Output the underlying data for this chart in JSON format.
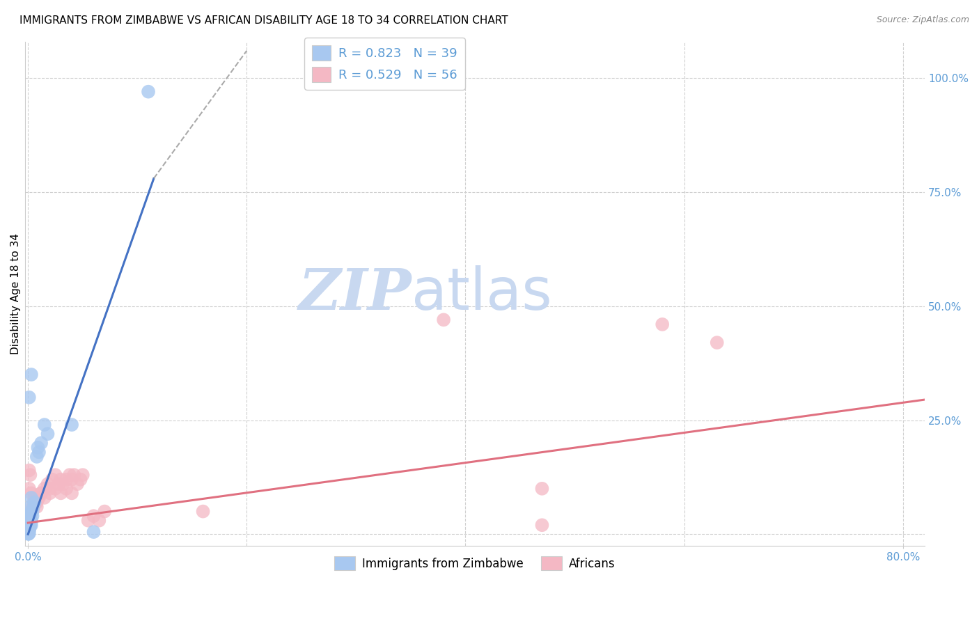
{
  "title": "IMMIGRANTS FROM ZIMBABWE VS AFRICAN DISABILITY AGE 18 TO 34 CORRELATION CHART",
  "source": "Source: ZipAtlas.com",
  "ylabel": "Disability Age 18 to 34",
  "ytick_values": [
    0.0,
    0.25,
    0.5,
    0.75,
    1.0
  ],
  "ytick_labels": [
    "",
    "25.0%",
    "50.0%",
    "75.0%",
    "100.0%"
  ],
  "xlim": [
    -0.003,
    0.82
  ],
  "ylim": [
    -0.025,
    1.08
  ],
  "watermark_zip": "ZIP",
  "watermark_atlas": "atlas",
  "legend_r_entries": [
    {
      "label": "R = 0.823   N = 39",
      "color": "#a8c8f0"
    },
    {
      "label": "R = 0.529   N = 56",
      "color": "#f4b8c4"
    }
  ],
  "legend_bottom_labels": [
    "Immigrants from Zimbabwe",
    "Africans"
  ],
  "legend_bottom_colors": [
    "#a8c8f0",
    "#f4b8c4"
  ],
  "blue_scatter": [
    [
      0.0005,
      0.005
    ],
    [
      0.001,
      0.01
    ],
    [
      0.0008,
      0.02
    ],
    [
      0.0015,
      0.015
    ],
    [
      0.002,
      0.02
    ],
    [
      0.001,
      0.03
    ],
    [
      0.002,
      0.025
    ],
    [
      0.003,
      0.03
    ],
    [
      0.002,
      0.04
    ],
    [
      0.003,
      0.05
    ],
    [
      0.002,
      0.06
    ],
    [
      0.001,
      0.04
    ],
    [
      0.003,
      0.02
    ],
    [
      0.002,
      0.03
    ],
    [
      0.001,
      0.01
    ],
    [
      0.004,
      0.05
    ],
    [
      0.005,
      0.06
    ],
    [
      0.006,
      0.07
    ],
    [
      0.003,
      0.08
    ],
    [
      0.001,
      0.03
    ],
    [
      0.002,
      0.02
    ],
    [
      0.004,
      0.04
    ],
    [
      0.008,
      0.17
    ],
    [
      0.009,
      0.19
    ],
    [
      0.01,
      0.18
    ],
    [
      0.012,
      0.2
    ],
    [
      0.0005,
      0.002
    ],
    [
      0.001,
      0.002
    ],
    [
      0.0003,
      0.001
    ],
    [
      0.0008,
      0.005
    ],
    [
      0.015,
      0.24
    ],
    [
      0.018,
      0.22
    ],
    [
      0.04,
      0.24
    ],
    [
      0.001,
      0.3
    ],
    [
      0.003,
      0.35
    ],
    [
      0.0005,
      0.001
    ],
    [
      0.06,
      0.005
    ],
    [
      0.11,
      0.97
    ],
    [
      0.0004,
      0.001
    ]
  ],
  "pink_scatter": [
    [
      0.0005,
      0.005
    ],
    [
      0.001,
      0.01
    ],
    [
      0.0008,
      0.02
    ],
    [
      0.0015,
      0.015
    ],
    [
      0.002,
      0.02
    ],
    [
      0.001,
      0.03
    ],
    [
      0.002,
      0.025
    ],
    [
      0.003,
      0.03
    ],
    [
      0.002,
      0.04
    ],
    [
      0.003,
      0.05
    ],
    [
      0.004,
      0.06
    ],
    [
      0.005,
      0.07
    ],
    [
      0.006,
      0.08
    ],
    [
      0.007,
      0.07
    ],
    [
      0.008,
      0.06
    ],
    [
      0.009,
      0.08
    ],
    [
      0.01,
      0.08
    ],
    [
      0.012,
      0.09
    ],
    [
      0.015,
      0.1
    ],
    [
      0.018,
      0.11
    ],
    [
      0.02,
      0.1
    ],
    [
      0.022,
      0.12
    ],
    [
      0.025,
      0.13
    ],
    [
      0.028,
      0.11
    ],
    [
      0.03,
      0.12
    ],
    [
      0.032,
      0.11
    ],
    [
      0.035,
      0.12
    ],
    [
      0.038,
      0.13
    ],
    [
      0.04,
      0.12
    ],
    [
      0.042,
      0.13
    ],
    [
      0.045,
      0.11
    ],
    [
      0.048,
      0.12
    ],
    [
      0.05,
      0.13
    ],
    [
      0.001,
      0.1
    ],
    [
      0.003,
      0.09
    ],
    [
      0.006,
      0.08
    ],
    [
      0.008,
      0.07
    ],
    [
      0.012,
      0.09
    ],
    [
      0.015,
      0.08
    ],
    [
      0.02,
      0.09
    ],
    [
      0.025,
      0.1
    ],
    [
      0.03,
      0.09
    ],
    [
      0.035,
      0.1
    ],
    [
      0.04,
      0.09
    ],
    [
      0.055,
      0.03
    ],
    [
      0.06,
      0.04
    ],
    [
      0.065,
      0.03
    ],
    [
      0.07,
      0.05
    ],
    [
      0.16,
      0.05
    ],
    [
      0.38,
      0.47
    ],
    [
      0.47,
      0.1
    ],
    [
      0.47,
      0.02
    ],
    [
      0.58,
      0.46
    ],
    [
      0.63,
      0.42
    ],
    [
      0.001,
      0.14
    ],
    [
      0.002,
      0.13
    ]
  ],
  "blue_line": {
    "x": [
      0.0,
      0.115
    ],
    "y": [
      0.0,
      0.78
    ]
  },
  "blue_dashed": {
    "x": [
      0.115,
      0.2
    ],
    "y": [
      0.78,
      1.06
    ]
  },
  "pink_line": {
    "x": [
      0.0,
      0.82
    ],
    "y": [
      0.025,
      0.295
    ]
  },
  "blue_line_color": "#4472c4",
  "pink_line_color": "#e07080",
  "blue_scatter_color": "#a8c8f0",
  "pink_scatter_color": "#f4b8c4",
  "grid_color": "#d0d0d0",
  "axis_tick_color": "#5b9bd5",
  "title_fontsize": 11,
  "source_fontsize": 9,
  "axis_label_fontsize": 11,
  "watermark_color_zip": "#c8d8f0",
  "watermark_color_atlas": "#c8d8f0"
}
